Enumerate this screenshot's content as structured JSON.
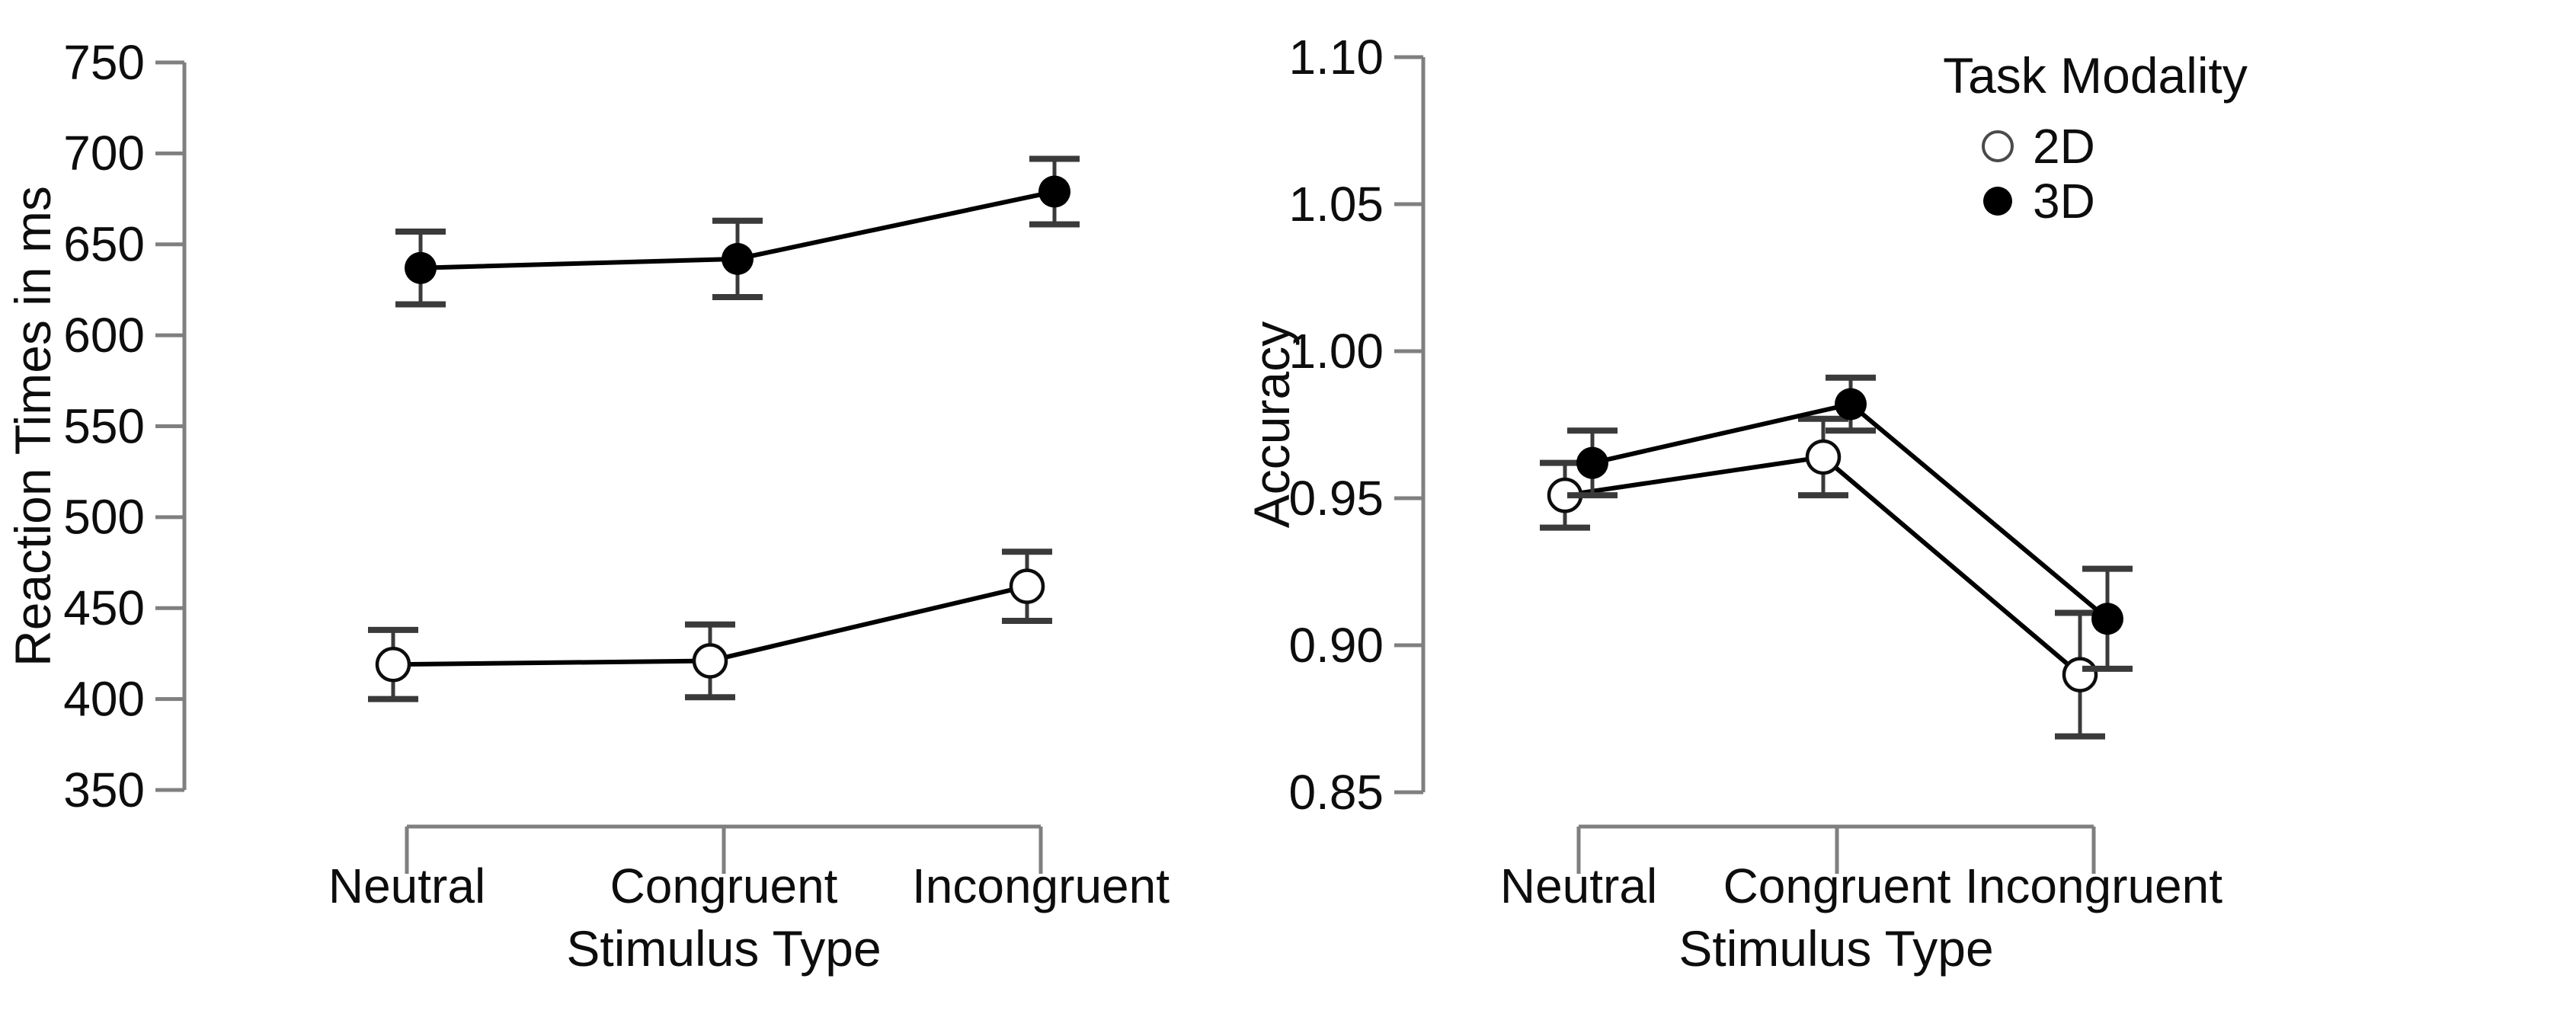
{
  "figure": {
    "background": "#ffffff",
    "text_color": "#0d0d0d",
    "axis_color": "#7f7f7f",
    "series_color": "#000000",
    "errorbar_color": "#3a3a3a"
  },
  "legend": {
    "title": "Task Modality",
    "items": [
      {
        "label": "2D",
        "marker": "open-circle-icon"
      },
      {
        "label": "3D",
        "marker": "filled-circle-icon"
      }
    ]
  },
  "chart_data": [
    {
      "type": "line",
      "panel": "reaction-times",
      "xlabel": "Stimulus Type",
      "ylabel": "Reaction Times in ms",
      "categories": [
        "Neutral",
        "Congruent",
        "Incongruent"
      ],
      "ylim": [
        350,
        750
      ],
      "yticks": [
        750,
        700,
        650,
        600,
        550,
        500,
        450,
        400,
        350
      ],
      "ytick_decimals": 0,
      "grid": false,
      "error_bars": true,
      "legend_position": "none",
      "series": [
        {
          "name": "2D",
          "marker": "open-circle",
          "values": [
            419,
            421,
            462
          ],
          "errors": [
            19,
            20,
            19
          ]
        },
        {
          "name": "3D",
          "marker": "filled-circle",
          "values": [
            637,
            642,
            679
          ],
          "errors": [
            20,
            21,
            18
          ]
        }
      ]
    },
    {
      "type": "line",
      "panel": "accuracy",
      "xlabel": "Stimulus Type",
      "ylabel": "Accuracy",
      "categories": [
        "Neutral",
        "Congruent",
        "Incongruent"
      ],
      "ylim": [
        0.85,
        1.1
      ],
      "yticks": [
        1.1,
        1.05,
        1.0,
        0.95,
        0.9,
        0.85
      ],
      "ytick_decimals": 2,
      "grid": false,
      "error_bars": true,
      "legend_position": "top-right",
      "series": [
        {
          "name": "2D",
          "marker": "open-circle",
          "values": [
            0.951,
            0.964,
            0.89
          ],
          "errors": [
            0.011,
            0.013,
            0.021
          ]
        },
        {
          "name": "3D",
          "marker": "filled-circle",
          "values": [
            0.962,
            0.982,
            0.909
          ],
          "errors": [
            0.011,
            0.009,
            0.017
          ]
        }
      ]
    }
  ]
}
